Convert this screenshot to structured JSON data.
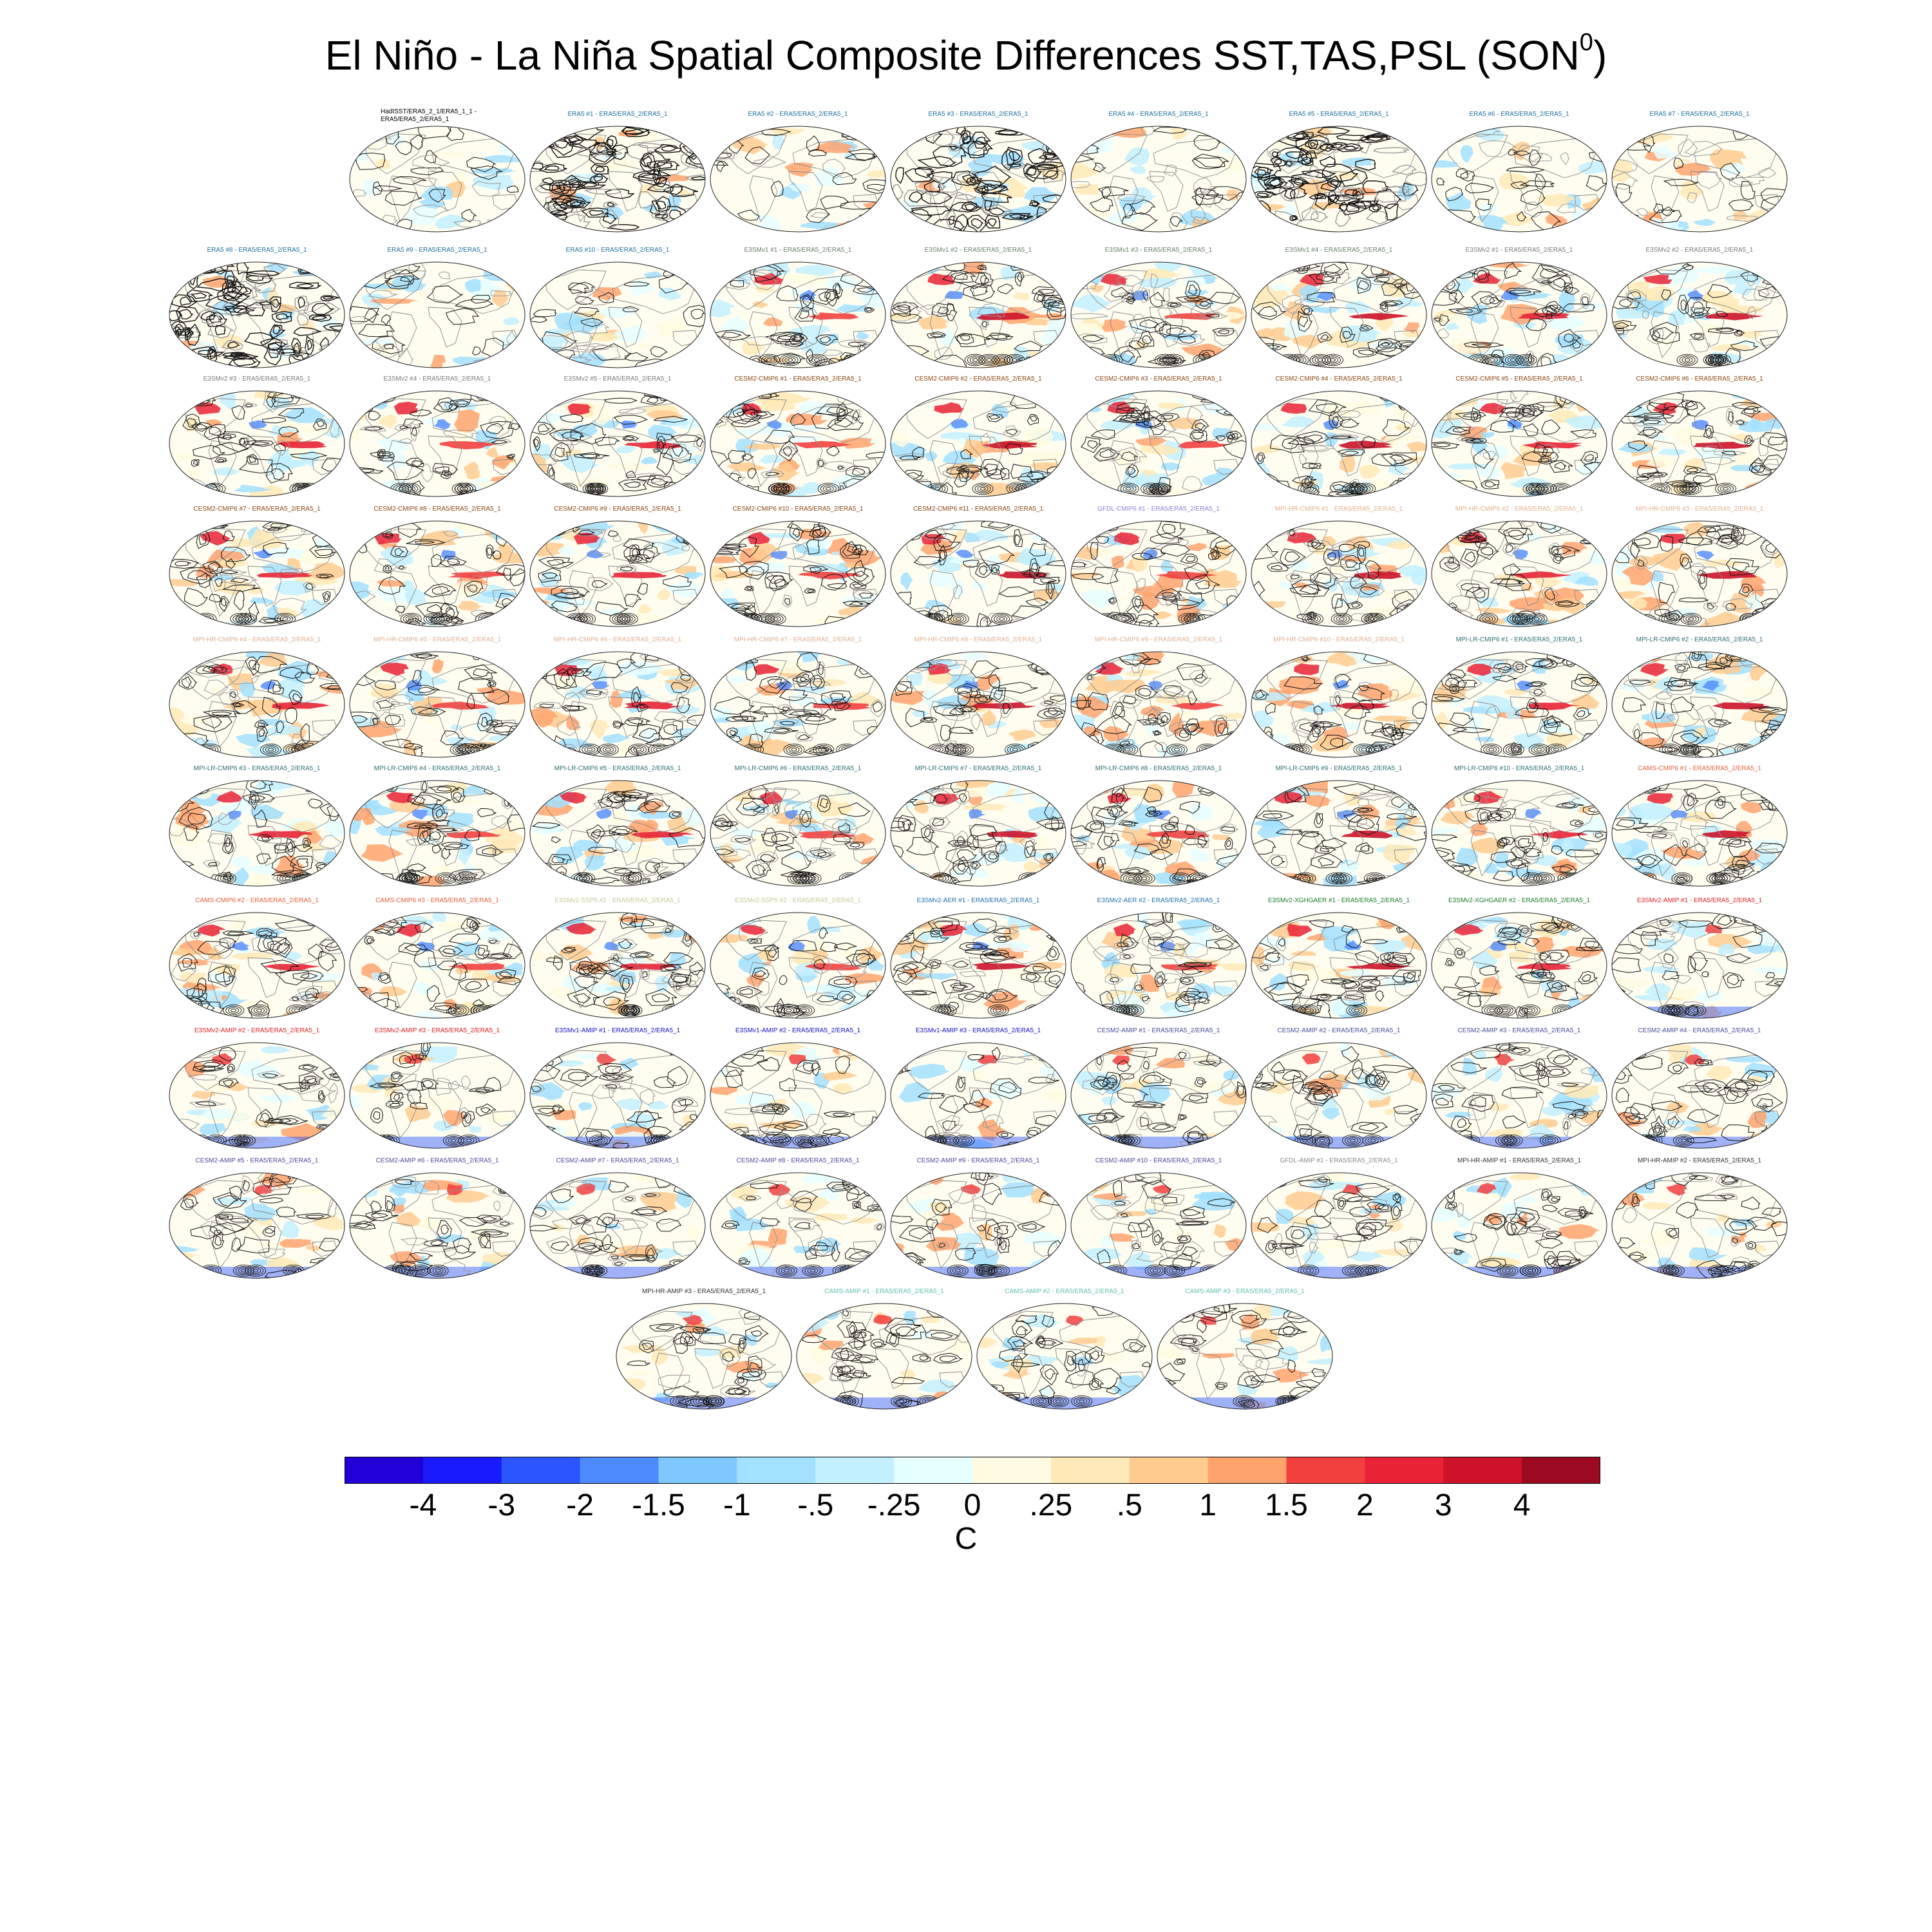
{
  "title": {
    "main": "El Niño - La Niña Spatial Composite Differences SST,TAS,PSL (SON",
    "superscript": "0",
    "close": ")"
  },
  "chart_data": {
    "type": "map-panel-grid",
    "title": "El Niño - La Niña Spatial Composite Differences SST,TAS,PSL (SON0)",
    "projection": "global equal-area map (Robinson-like)",
    "fill": "SST/TAS composite difference (shaded)",
    "contours": "PSL composite difference (black/grey lines)",
    "colorbar": {
      "unit": "C",
      "ticks": [
        "-4",
        "-3",
        "-2",
        "-1.5",
        "-1",
        "-.5",
        "-.25",
        "0",
        ".25",
        ".5",
        "1",
        "1.5",
        "2",
        "3",
        "4"
      ],
      "colors": [
        "#2000d6",
        "#1a1aff",
        "#2b55ff",
        "#4d8aff",
        "#7fc8ff",
        "#a2e1ff",
        "#c2f0ff",
        "#e6ffff",
        "#fffbe2",
        "#ffe9b6",
        "#ffcb8f",
        "#ffa36d",
        "#f2403f",
        "#e92235",
        "#cc1329",
        "#9c0a22"
      ]
    },
    "panels": [
      {
        "label": "HadISST/ERA5_2_1/ERA5_1_1 -\nERA5/ERA5_2/ERA5_1",
        "color": "#000000",
        "style": "obs"
      },
      {
        "label": "ERA5   #1 - ERA5/ERA5_2/ERA5_1",
        "color": "#1f6fa0",
        "style": "era"
      },
      {
        "label": "ERA5   #2 - ERA5/ERA5_2/ERA5_1",
        "color": "#1f6fa0",
        "style": "obs"
      },
      {
        "label": "ERA5   #3 - ERA5/ERA5_2/ERA5_1",
        "color": "#1f6fa0",
        "style": "era"
      },
      {
        "label": "ERA5   #4 - ERA5/ERA5_2/ERA5_1",
        "color": "#1f6fa0",
        "style": "obs"
      },
      {
        "label": "ERA5   #5 - ERA5/ERA5_2/ERA5_1",
        "color": "#1f6fa0",
        "style": "era"
      },
      {
        "label": "ERA5   #6 - ERA5/ERA5_2/ERA5_1",
        "color": "#1f6fa0",
        "style": "obs"
      },
      {
        "label": "ERA5   #7 - ERA5/ERA5_2/ERA5_1",
        "color": "#1f6fa0",
        "style": "obs"
      },
      {
        "label": "ERA5   #8 - ERA5/ERA5_2/ERA5_1",
        "color": "#1f6fa0",
        "style": "era"
      },
      {
        "label": "ERA5   #9 - ERA5/ERA5_2/ERA5_1",
        "color": "#1f6fa0",
        "style": "obs"
      },
      {
        "label": "ERA5   #10 - ERA5/ERA5_2/ERA5_1",
        "color": "#1f6fa0",
        "style": "obs"
      },
      {
        "label": "E3SMv1 #1 - ERA5/ERA5_2/ERA5_1",
        "color": "#6a7d6a",
        "style": "model"
      },
      {
        "label": "E3SMv1 #2 - ERA5/ERA5_2/ERA5_1",
        "color": "#6a7d6a",
        "style": "model"
      },
      {
        "label": "E3SMv1 #3 - ERA5/ERA5_2/ERA5_1",
        "color": "#6a7d6a",
        "style": "model"
      },
      {
        "label": "E3SMv1 #4 - ERA5/ERA5_2/ERA5_1",
        "color": "#6a7d6a",
        "style": "model"
      },
      {
        "label": "E3SMv2 #1 - ERA5/ERA5_2/ERA5_1",
        "color": "#7a7a7a",
        "style": "model"
      },
      {
        "label": "E3SMv2 #2 - ERA5/ERA5_2/ERA5_1",
        "color": "#7a7a7a",
        "style": "model"
      },
      {
        "label": "E3SMv2 #3 - ERA5/ERA5_2/ERA5_1",
        "color": "#7a7a7a",
        "style": "model"
      },
      {
        "label": "E3SMv2 #4 - ERA5/ERA5_2/ERA5_1",
        "color": "#7a7a7a",
        "style": "model"
      },
      {
        "label": "E3SMv2 #5 - ERA5/ERA5_2/ERA5_1",
        "color": "#7a7a7a",
        "style": "model"
      },
      {
        "label": "CESM2-CMIP6 #1 - ERA5/ERA5_2/ERA5_1",
        "color": "#8b4513",
        "style": "model"
      },
      {
        "label": "CESM2-CMIP6 #2 - ERA5/ERA5_2/ERA5_1",
        "color": "#8b4513",
        "style": "model"
      },
      {
        "label": "CESM2-CMIP6 #3 - ERA5/ERA5_2/ERA5_1",
        "color": "#8b4513",
        "style": "model"
      },
      {
        "label": "CESM2-CMIP6 #4 - ERA5/ERA5_2/ERA5_1",
        "color": "#8b4513",
        "style": "model"
      },
      {
        "label": "CESM2-CMIP6 #5 - ERA5/ERA5_2/ERA5_1",
        "color": "#8b4513",
        "style": "model"
      },
      {
        "label": "CESM2-CMIP6 #6 - ERA5/ERA5_2/ERA5_1",
        "color": "#8b4513",
        "style": "model"
      },
      {
        "label": "CESM2-CMIP6 #7 - ERA5/ERA5_2/ERA5_1",
        "color": "#8b4513",
        "style": "model"
      },
      {
        "label": "CESM2-CMIP6 #8 - ERA5/ERA5_2/ERA5_1",
        "color": "#8b4513",
        "style": "model"
      },
      {
        "label": "CESM2-CMIP6 #9 - ERA5/ERA5_2/ERA5_1",
        "color": "#8b4513",
        "style": "model"
      },
      {
        "label": "CESM2-CMIP6 #10 - ERA5/ERA5_2/ERA5_1",
        "color": "#8b4513",
        "style": "model"
      },
      {
        "label": "CESM2-CMIP6 #11 - ERA5/ERA5_2/ERA5_1",
        "color": "#8b4513",
        "style": "model"
      },
      {
        "label": "GFDL-CMIP6 #1 - ERA5/ERA5_2/ERA5_1",
        "color": "#8a7fd6",
        "style": "model"
      },
      {
        "label": "MPI-HR-CMIP6 #1 - ERA5/ERA5_2/ERA5_1",
        "color": "#e0b090",
        "style": "model"
      },
      {
        "label": "MPI-HR-CMIP6 #2 - ERA5/ERA5_2/ERA5_1",
        "color": "#e0b090",
        "style": "model"
      },
      {
        "label": "MPI-HR-CMIP6 #3 - ERA5/ERA5_2/ERA5_1",
        "color": "#e0b090",
        "style": "model"
      },
      {
        "label": "MPI-HR-CMIP6 #4 - ERA5/ERA5_2/ERA5_1",
        "color": "#e0b090",
        "style": "model"
      },
      {
        "label": "MPI-HR-CMIP6 #5 - ERA5/ERA5_2/ERA5_1",
        "color": "#e0b090",
        "style": "model"
      },
      {
        "label": "MPI-HR-CMIP6 #6 - ERA5/ERA5_2/ERA5_1",
        "color": "#e0b090",
        "style": "model"
      },
      {
        "label": "MPI-HR-CMIP6 #7 - ERA5/ERA5_2/ERA5_1",
        "color": "#e0b090",
        "style": "model"
      },
      {
        "label": "MPI-HR-CMIP6 #8 - ERA5/ERA5_2/ERA5_1",
        "color": "#e0b090",
        "style": "model"
      },
      {
        "label": "MPI-HR-CMIP6 #9 - ERA5/ERA5_2/ERA5_1",
        "color": "#e0b090",
        "style": "model"
      },
      {
        "label": "MPI-HR-CMIP6 #10 - ERA5/ERA5_2/ERA5_1",
        "color": "#e0b090",
        "style": "model"
      },
      {
        "label": "MPI-LR-CMIP6 #1 - ERA5/ERA5_2/ERA5_1",
        "color": "#2f6f6f",
        "style": "model"
      },
      {
        "label": "MPI-LR-CMIP6 #2 - ERA5/ERA5_2/ERA5_1",
        "color": "#2f6f6f",
        "style": "model"
      },
      {
        "label": "MPI-LR-CMIP6 #3 - ERA5/ERA5_2/ERA5_1",
        "color": "#2f6f6f",
        "style": "model"
      },
      {
        "label": "MPI-LR-CMIP6 #4 - ERA5/ERA5_2/ERA5_1",
        "color": "#2f6f6f",
        "style": "model"
      },
      {
        "label": "MPI-LR-CMIP6 #5 - ERA5/ERA5_2/ERA5_1",
        "color": "#2f6f6f",
        "style": "model"
      },
      {
        "label": "MPI-LR-CMIP6 #6 - ERA5/ERA5_2/ERA5_1",
        "color": "#2f6f6f",
        "style": "model"
      },
      {
        "label": "MPI-LR-CMIP6 #7 - ERA5/ERA5_2/ERA5_1",
        "color": "#2f6f6f",
        "style": "model"
      },
      {
        "label": "MPI-LR-CMIP6 #8 - ERA5/ERA5_2/ERA5_1",
        "color": "#2f6f6f",
        "style": "model"
      },
      {
        "label": "MPI-LR-CMIP6 #9 - ERA5/ERA5_2/ERA5_1",
        "color": "#2f6f6f",
        "style": "model"
      },
      {
        "label": "MPI-LR-CMIP6 #10 - ERA5/ERA5_2/ERA5_1",
        "color": "#2f6f6f",
        "style": "model"
      },
      {
        "label": "CAMS-CMIP6 #1 - ERA5/ERA5_2/ERA5_1",
        "color": "#e0603a",
        "style": "model"
      },
      {
        "label": "CAMS-CMIP6 #2 - ERA5/ERA5_2/ERA5_1",
        "color": "#e0603a",
        "style": "model"
      },
      {
        "label": "CAMS-CMIP6 #3 - ERA5/ERA5_2/ERA5_1",
        "color": "#e0603a",
        "style": "model"
      },
      {
        "label": "E3SMv2-SSP5 #1 - ERA5/ERA5_2/ERA5_1",
        "color": "#c8c89a",
        "style": "model"
      },
      {
        "label": "E3SMv2-SSP5 #2 - ERA5/ERA5_2/ERA5_1",
        "color": "#c8c89a",
        "style": "model"
      },
      {
        "label": "E3SMv2-AER #1 - ERA5/ERA5_2/ERA5_1",
        "color": "#2070a8",
        "style": "model"
      },
      {
        "label": "E3SMv2-AER #2 - ERA5/ERA5_2/ERA5_1",
        "color": "#2070a8",
        "style": "model"
      },
      {
        "label": "E3SMv2-XGHGAER #1 - ERA5/ERA5_2/ERA5_1",
        "color": "#1a7a2a",
        "style": "model"
      },
      {
        "label": "E3SMv2-XGHGAER #2 - ERA5/ERA5_2/ERA5_1",
        "color": "#1a7a2a",
        "style": "model"
      },
      {
        "label": "E3SMv2-AMIP #1 - ERA5/ERA5_2/ERA5_1",
        "color": "#e02020",
        "style": "amip"
      },
      {
        "label": "E3SMv2-AMIP #2 - ERA5/ERA5_2/ERA5_1",
        "color": "#e02020",
        "style": "amip"
      },
      {
        "label": "E3SMv2-AMIP #3 - ERA5/ERA5_2/ERA5_1",
        "color": "#e02020",
        "style": "amip"
      },
      {
        "label": "E3SMv1-AMIP #1 - ERA5/ERA5_2/ERA5_1",
        "color": "#1010c0",
        "style": "amip"
      },
      {
        "label": "E3SMv1-AMIP #2 - ERA5/ERA5_2/ERA5_1",
        "color": "#1010c0",
        "style": "amip"
      },
      {
        "label": "E3SMv1-AMIP #3 - ERA5/ERA5_2/ERA5_1",
        "color": "#1010c0",
        "style": "amip"
      },
      {
        "label": "CESM2-AMIP #1 - ERA5/ERA5_2/ERA5_1",
        "color": "#4a4a9a",
        "style": "amip"
      },
      {
        "label": "CESM2-AMIP #2 - ERA5/ERA5_2/ERA5_1",
        "color": "#4a4a9a",
        "style": "amip"
      },
      {
        "label": "CESM2-AMIP #3 - ERA5/ERA5_2/ERA5_1",
        "color": "#4a4a9a",
        "style": "amip"
      },
      {
        "label": "CESM2-AMIP #4 - ERA5/ERA5_2/ERA5_1",
        "color": "#4a4a9a",
        "style": "amip"
      },
      {
        "label": "CESM2-AMIP #5 - ERA5/ERA5_2/ERA5_1",
        "color": "#4a4a9a",
        "style": "amip"
      },
      {
        "label": "CESM2-AMIP #6 - ERA5/ERA5_2/ERA5_1",
        "color": "#4a4a9a",
        "style": "amip"
      },
      {
        "label": "CESM2-AMIP #7 - ERA5/ERA5_2/ERA5_1",
        "color": "#4a4a9a",
        "style": "amip"
      },
      {
        "label": "CESM2-AMIP #8 - ERA5/ERA5_2/ERA5_1",
        "color": "#4a4a9a",
        "style": "amip"
      },
      {
        "label": "CESM2-AMIP #9 - ERA5/ERA5_2/ERA5_1",
        "color": "#4a4a9a",
        "style": "amip"
      },
      {
        "label": "CESM2-AMIP #10 - ERA5/ERA5_2/ERA5_1",
        "color": "#4a4a9a",
        "style": "amip"
      },
      {
        "label": "GFDL-AMIP #1 - ERA5/ERA5_2/ERA5_1",
        "color": "#8a8a8a",
        "style": "amip"
      },
      {
        "label": "MPI-HR-AMIP #1 - ERA5/ERA5_2/ERA5_1",
        "color": "#333333",
        "style": "amip"
      },
      {
        "label": "MPI-HR-AMIP #2 - ERA5/ERA5_2/ERA5_1",
        "color": "#333333",
        "style": "amip"
      },
      {
        "label": "MPI-HR-AMIP #3 - ERA5/ERA5_2/ERA5_1",
        "color": "#333333",
        "style": "amip"
      },
      {
        "label": "CAMS-AMIP #1 - ERA5/ERA5_2/ERA5_1",
        "color": "#5fc0b0",
        "style": "amip"
      },
      {
        "label": "CAMS-AMIP #2 - ERA5/ERA5_2/ERA5_1",
        "color": "#5fc0b0",
        "style": "amip"
      },
      {
        "label": "CAMS-AMIP #3 - ERA5/ERA5_2/ERA5_1",
        "color": "#5fc0b0",
        "style": "amip"
      }
    ]
  }
}
